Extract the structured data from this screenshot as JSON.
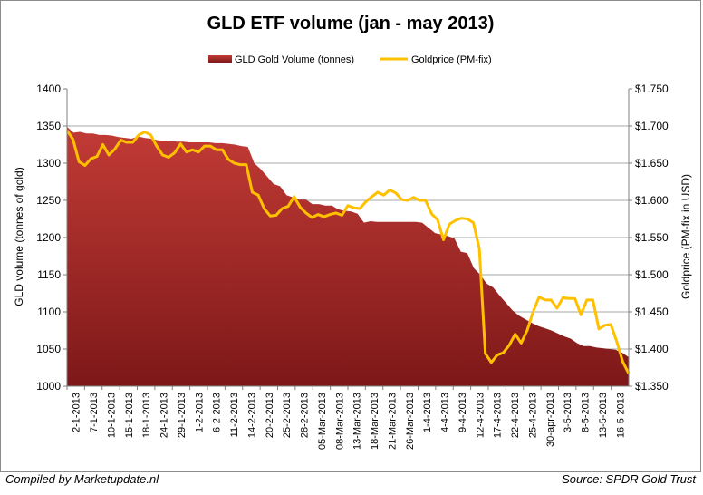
{
  "chart_data": {
    "type": "area+line",
    "title": "GLD ETF volume (jan - may 2013)",
    "legend": {
      "placement": "top",
      "entries": [
        "GLD Gold Volume (tonnes)",
        "Goldprice (PM-fix)"
      ]
    },
    "ylabel_left": "GLD volume (tonnes of gold)",
    "ylabel_right": "Goldprice (PM-fix in USD)",
    "ylim_left": [
      1000,
      1400
    ],
    "yticks_left": [
      "1400",
      "1350",
      "1300",
      "1250",
      "1200",
      "1150",
      "1100",
      "1050",
      "1000"
    ],
    "ylim_right": [
      1.35,
      1.75
    ],
    "yticks_right": [
      "$1.750",
      "$1.700",
      "$1.650",
      "$1.600",
      "$1.550",
      "$1.500",
      "$1.450",
      "$1.400",
      "$1.350"
    ],
    "xtick_labels": [
      "2-1-2013",
      "7-1-2013",
      "10-1-2013",
      "15-1-2013",
      "18-1-2013",
      "24-1-2013",
      "29-1-2013",
      "1-2-2013",
      "6-2-2013",
      "11-2-2013",
      "14-2-2013",
      "20-2-2013",
      "25-2-2013",
      "28-2-2013",
      "05-Mar-2013",
      "08-Mar-2013",
      "13-Mar-2013",
      "18-Mar-2013",
      "21-Mar-2013",
      "26-Mar-2013",
      "1-4-2013",
      "4-4-2013",
      "9-4-2013",
      "12-4-2013",
      "17-4-2013",
      "22-4-2013",
      "25-4-2013",
      "30-apr-2013",
      "3-5-2013",
      "8-5-2013",
      "13-5-2013",
      "16-5-2013"
    ],
    "series": [
      {
        "name": "GLD Gold Volume (tonnes)",
        "kind": "area",
        "color": "#9e2424",
        "values": [
          1349,
          1341,
          1342,
          1340,
          1340,
          1338,
          1338,
          1337,
          1335,
          1334,
          1333,
          1336,
          1334,
          1333,
          1331,
          1330,
          1330,
          1329,
          1329,
          1328,
          1328,
          1328,
          1328,
          1327,
          1327,
          1326,
          1325,
          1323,
          1322,
          1300,
          1292,
          1282,
          1272,
          1269,
          1257,
          1254,
          1251,
          1251,
          1245,
          1245,
          1243,
          1243,
          1238,
          1236,
          1235,
          1232,
          1220,
          1222,
          1221,
          1221,
          1221,
          1221,
          1221,
          1221,
          1221,
          1220,
          1213,
          1206,
          1204,
          1202,
          1199,
          1181,
          1179,
          1159,
          1150,
          1138,
          1133,
          1122,
          1112,
          1102,
          1095,
          1090,
          1085,
          1081,
          1078,
          1075,
          1071,
          1067,
          1064,
          1058,
          1054,
          1054,
          1052,
          1051,
          1050,
          1049,
          1045,
          1039
        ]
      },
      {
        "name": "Goldprice (PM-fix)",
        "kind": "line",
        "color": "#ffc000",
        "values": [
          1.694,
          1.682,
          1.652,
          1.647,
          1.656,
          1.659,
          1.675,
          1.661,
          1.669,
          1.681,
          1.678,
          1.678,
          1.688,
          1.692,
          1.688,
          1.673,
          1.661,
          1.658,
          1.664,
          1.676,
          1.665,
          1.668,
          1.665,
          1.673,
          1.673,
          1.668,
          1.668,
          1.655,
          1.65,
          1.648,
          1.648,
          1.611,
          1.607,
          1.589,
          1.579,
          1.58,
          1.589,
          1.592,
          1.605,
          1.591,
          1.583,
          1.577,
          1.581,
          1.578,
          1.581,
          1.583,
          1.58,
          1.593,
          1.59,
          1.589,
          1.598,
          1.605,
          1.611,
          1.607,
          1.614,
          1.61,
          1.601,
          1.6,
          1.604,
          1.6,
          1.6,
          1.582,
          1.574,
          1.547,
          1.568,
          1.573,
          1.576,
          1.575,
          1.57,
          1.535,
          1.394,
          1.382,
          1.392,
          1.395,
          1.405,
          1.42,
          1.408,
          1.425,
          1.45,
          1.47,
          1.466,
          1.466,
          1.455,
          1.469,
          1.468,
          1.468,
          1.446,
          1.466,
          1.466,
          1.427,
          1.432,
          1.433,
          1.41,
          1.383,
          1.367
        ]
      }
    ]
  },
  "footer": {
    "left": "Compiled by Marketupdate.nl",
    "right": "Source: SPDR Gold Trust"
  }
}
